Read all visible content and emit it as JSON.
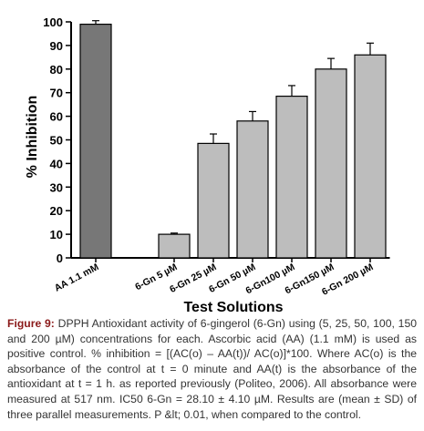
{
  "chart_data": {
    "type": "bar",
    "categories": [
      "AA 1.1 mM",
      null,
      "6-Gn 5 µM",
      "6-Gn 25 µM",
      "6-Gn 50 µM",
      "6-Gn100 µM",
      "6-Gn150 µM",
      "6-Gn 200 µM"
    ],
    "values": [
      99,
      null,
      10,
      48.5,
      58,
      68.5,
      80,
      86
    ],
    "errors": [
      1.5,
      null,
      0.5,
      4,
      4,
      4.5,
      4.5,
      5
    ],
    "colors": [
      "#777777",
      null,
      "#bdbdbd",
      "#bdbdbd",
      "#bdbdbd",
      "#bdbdbd",
      "#bdbdbd",
      "#bdbdbd"
    ],
    "ylim": [
      0,
      100
    ],
    "yticks": [
      0,
      10,
      20,
      30,
      40,
      50,
      60,
      70,
      80,
      90,
      100
    ],
    "y_label": "% Inhibition",
    "x_label": "Test Solutions",
    "grid": false
  },
  "caption": {
    "label": "Figure 9:",
    "text": "DPPH Antioxidant activity of 6-gingerol (6-Gn) using (5, 25, 50, 100, 150 and 200 µM) concentrations for each. Ascorbic acid (AA) (1.1 mM) is used as positive control. % inhibition = [(AC(o) – AA(t))/ AC(o)]*100. Where AC(o) is the absorbance of the control at t = 0 minute and AA(t) is the absorbance of the antioxidant at t = 1 h. as reported previously (Politeo, 2006). All absorbance were measured at 517 nm. IC50 6-Gn = 28.10 ± 4.10 µM. Results are (mean ± SD) of three parallel measurements. P &lt; 0.01, when compared to the control."
  }
}
